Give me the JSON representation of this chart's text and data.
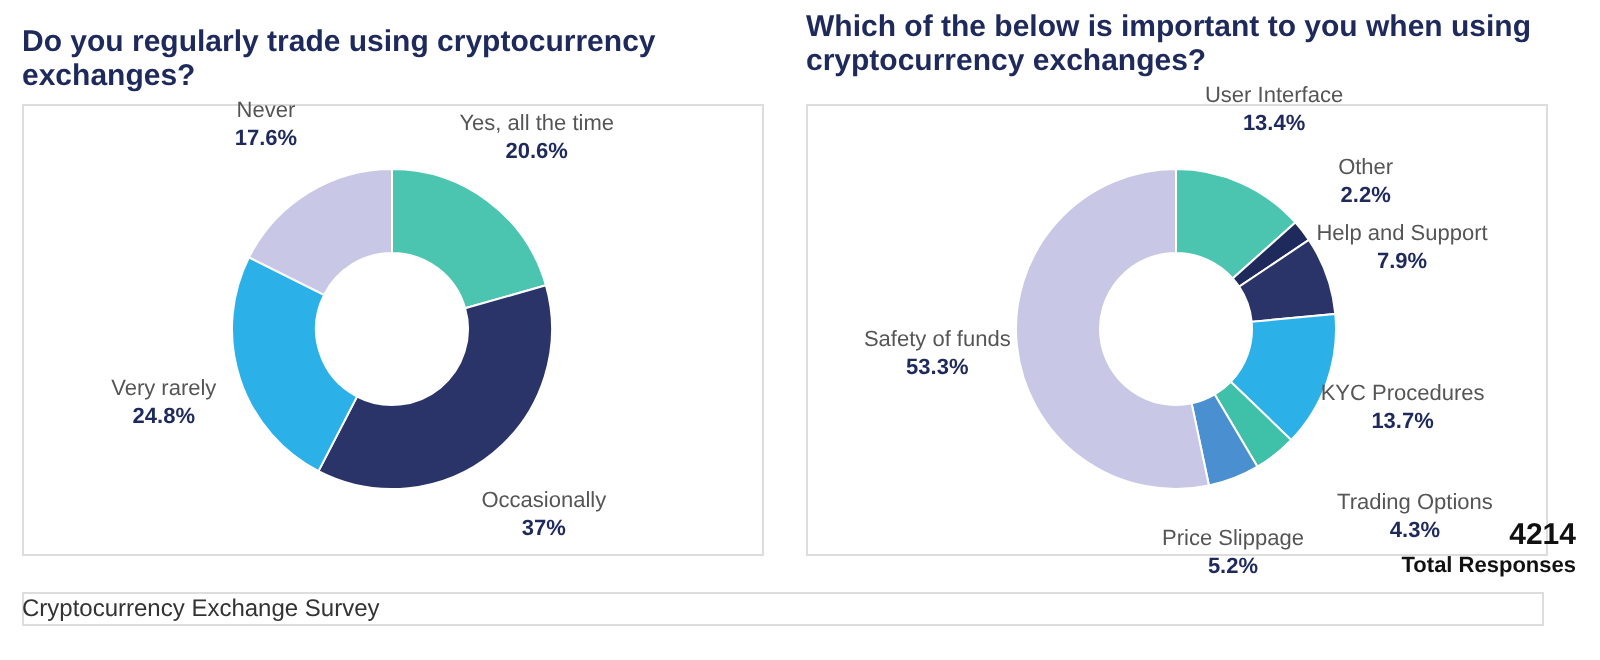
{
  "chart_data": [
    {
      "type": "donut",
      "title": [
        "Do you regularly trade using cryptocurrency",
        "exchanges?"
      ],
      "categories": [
        "Yes, all the time",
        "Occasionally",
        "Very rarely",
        "Never"
      ],
      "values": [
        20.6,
        37,
        24.8,
        17.6
      ],
      "value_labels": [
        "20.6%",
        "37%",
        "24.8%",
        "17.6%"
      ],
      "colors": [
        "#4cc5b0",
        "#2b3468",
        "#2bb0e8",
        "#c8c8e6"
      ],
      "annotations": [
        "Cryptocurrency Exchange Survey"
      ]
    },
    {
      "type": "donut",
      "title": [
        "Which of the below is important to you when using",
        "cryptocurrency exchanges?"
      ],
      "categories": [
        "User Interface",
        "Other",
        "Help and Support",
        "KYC Procedures",
        "Trading Options",
        "Price Slippage",
        "Safety of funds"
      ],
      "values": [
        13.4,
        2.2,
        7.9,
        13.7,
        4.3,
        5.2,
        53.3
      ],
      "value_labels": [
        "13.4%",
        "2.2%",
        "7.9%",
        "13.7%",
        "4.3%",
        "5.2%",
        "53.3%"
      ],
      "colors": [
        "#4cc5b0",
        "#1f2a5c",
        "#2b3468",
        "#2bb0e8",
        "#3fc0a8",
        "#4a90d0",
        "#c8c8e6"
      ],
      "annotations": [
        "4214",
        "Total Responses"
      ]
    }
  ]
}
